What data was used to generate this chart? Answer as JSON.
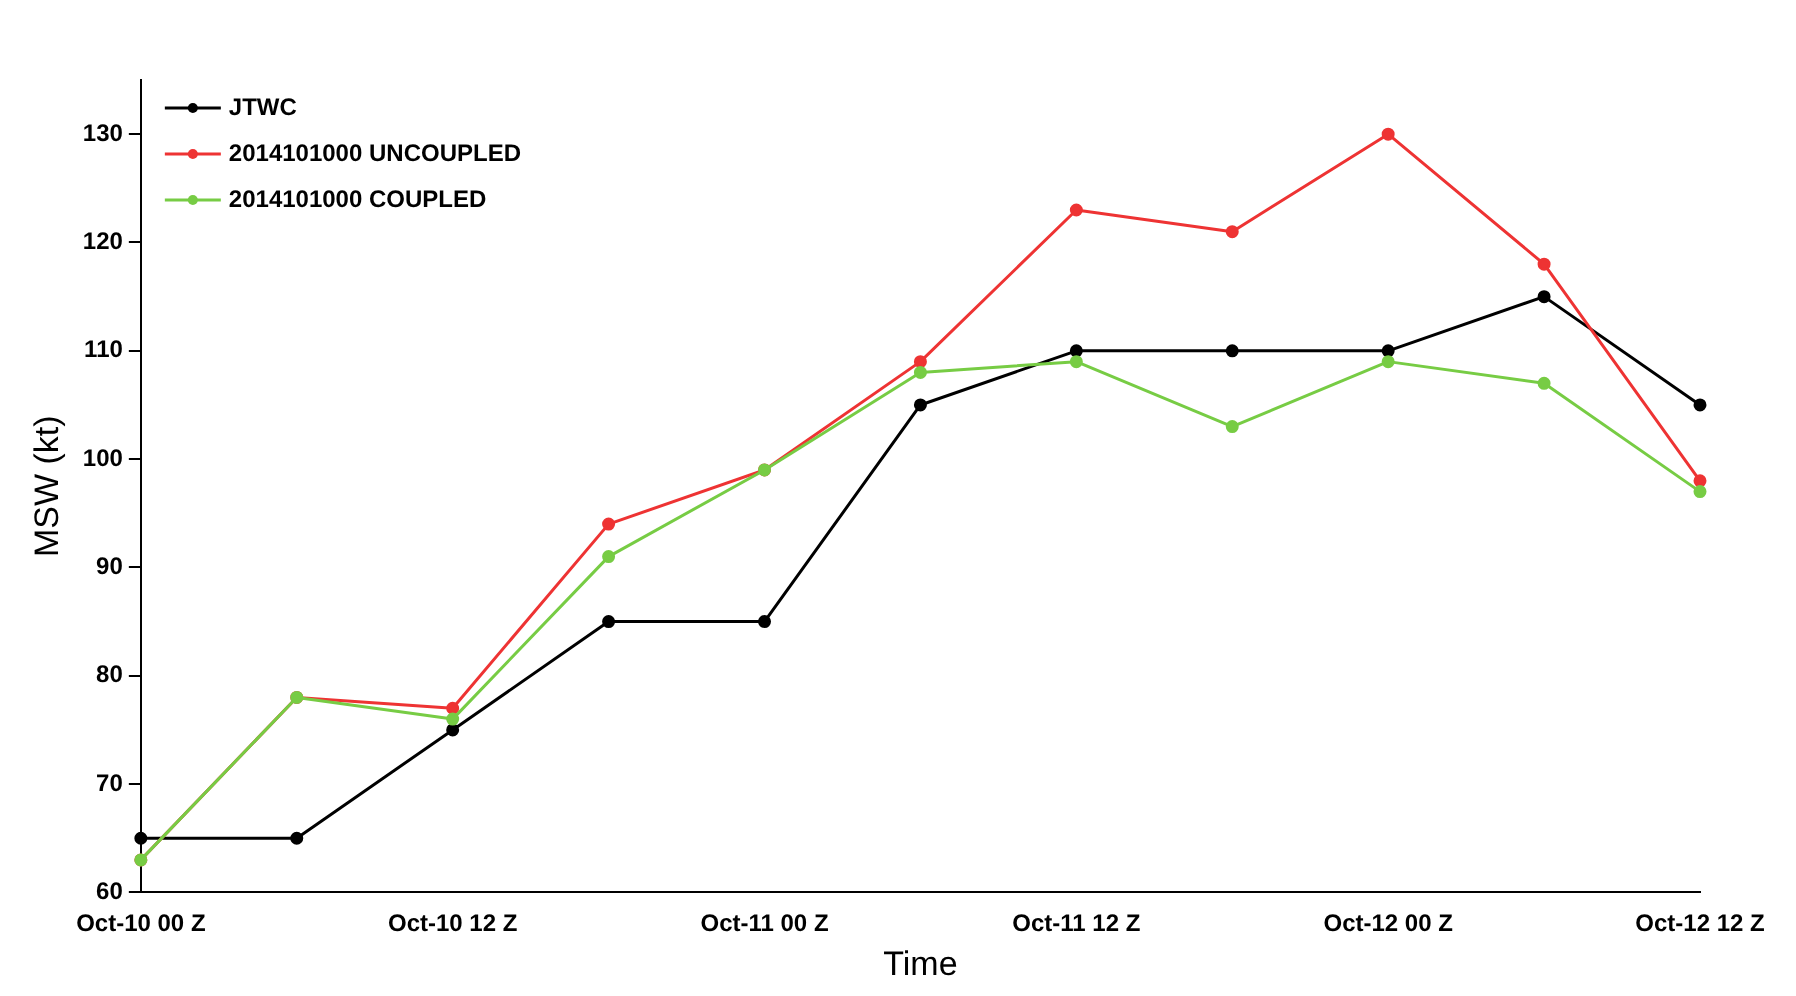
{
  "chart_data": {
    "type": "line",
    "xlabel": "Time",
    "ylabel": "MSW (kt)",
    "categories": [
      "Oct-10 00 Z",
      null,
      "Oct-10 12 Z",
      null,
      "Oct-11 00 Z",
      null,
      "Oct-11 12 Z",
      null,
      "Oct-12 00 Z",
      null,
      "Oct-12 12 Z"
    ],
    "series": [
      {
        "name": "JTWC",
        "color": "#000000",
        "values": [
          65,
          65,
          75,
          85,
          85,
          105,
          110,
          110,
          110,
          115,
          105
        ]
      },
      {
        "name": "2014101000 UNCOUPLED",
        "color": "#ee3333",
        "values": [
          63,
          78,
          77,
          94,
          99,
          109,
          123,
          121,
          130,
          118,
          98
        ]
      },
      {
        "name": "2014101000 COUPLED",
        "color": "#77cc44",
        "values": [
          63,
          78,
          76,
          91,
          99,
          108,
          109,
          103,
          109,
          107,
          97
        ]
      }
    ],
    "ylim": [
      60,
      135
    ],
    "yticks": [
      60,
      70,
      80,
      90,
      100,
      110,
      120,
      130
    ],
    "grid": false,
    "legend": "top left",
    "marker": "circle",
    "line_style": "solid"
  }
}
